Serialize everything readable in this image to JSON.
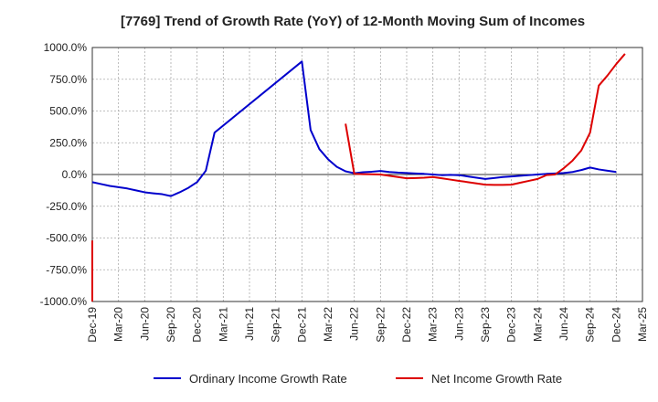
{
  "chart_data": {
    "type": "line",
    "title": "[7769]  Trend of Growth Rate (YoY) of 12-Month Moving Sum of Incomes",
    "xlabel": "",
    "ylabel": "",
    "ylim": [
      -1000,
      1000
    ],
    "yticks": [
      1000,
      750,
      500,
      250,
      0,
      -250,
      -500,
      -750,
      -1000
    ],
    "ytick_labels": [
      "1000.0%",
      "750.0%",
      "500.0%",
      "250.0%",
      "0.0%",
      "-250.0%",
      "-500.0%",
      "-750.0%",
      "-1000.0%"
    ],
    "x_tick_labels": [
      "Dec-19",
      "Mar-20",
      "Jun-20",
      "Sep-20",
      "Dec-20",
      "Mar-21",
      "Jun-21",
      "Sep-21",
      "Dec-21",
      "Mar-22",
      "Jun-22",
      "Sep-22",
      "Dec-22",
      "Mar-23",
      "Jun-23",
      "Sep-23",
      "Dec-23",
      "Mar-24",
      "Jun-24",
      "Sep-24",
      "Dec-24",
      "Mar-25"
    ],
    "x_range": [
      "Dec-19",
      "Mar-25"
    ],
    "grid": true,
    "legend_position": "bottom",
    "colors": {
      "ordinary": "#0000cc",
      "net": "#dd0000",
      "grid": "#aaaaaa",
      "zero_line": "#333333"
    },
    "series": [
      {
        "name": "Ordinary Income Growth Rate",
        "color": "#0000cc",
        "points": [
          [
            "Dec-19",
            -60
          ],
          [
            "Jan-20",
            -75
          ],
          [
            "Feb-20",
            -90
          ],
          [
            "Mar-20",
            -100
          ],
          [
            "Apr-20",
            -110
          ],
          [
            "May-20",
            -125
          ],
          [
            "Jun-20",
            -140
          ],
          [
            "Jul-20",
            -148
          ],
          [
            "Aug-20",
            -155
          ],
          [
            "Sep-20",
            -170
          ],
          [
            "Oct-20",
            -140
          ],
          [
            "Nov-20",
            -105
          ],
          [
            "Dec-20",
            -60
          ],
          [
            "Jan-21",
            30
          ],
          [
            "Feb-21",
            330
          ],
          [
            "Dec-21",
            890
          ],
          [
            "Jan-22",
            350
          ],
          [
            "Feb-22",
            200
          ],
          [
            "Mar-22",
            120
          ],
          [
            "Apr-22",
            60
          ],
          [
            "May-22",
            25
          ],
          [
            "Jun-22",
            10
          ],
          [
            "Jul-22",
            18
          ],
          [
            "Aug-22",
            22
          ],
          [
            "Sep-22",
            28
          ],
          [
            "Oct-22",
            20
          ],
          [
            "Nov-22",
            15
          ],
          [
            "Dec-22",
            12
          ],
          [
            "Jan-23",
            8
          ],
          [
            "Feb-23",
            5
          ],
          [
            "Mar-23",
            0
          ],
          [
            "Apr-23",
            -5
          ],
          [
            "May-23",
            -3
          ],
          [
            "Jun-23",
            -5
          ],
          [
            "Jul-23",
            -15
          ],
          [
            "Aug-23",
            -25
          ],
          [
            "Sep-23",
            -35
          ],
          [
            "Oct-23",
            -28
          ],
          [
            "Nov-23",
            -20
          ],
          [
            "Dec-23",
            -15
          ],
          [
            "Jan-24",
            -10
          ],
          [
            "Feb-24",
            -5
          ],
          [
            "Mar-24",
            0
          ],
          [
            "Apr-24",
            5
          ],
          [
            "May-24",
            8
          ],
          [
            "Jun-24",
            12
          ],
          [
            "Jul-24",
            20
          ],
          [
            "Aug-24",
            35
          ],
          [
            "Sep-24",
            55
          ],
          [
            "Oct-24",
            40
          ],
          [
            "Nov-24",
            30
          ],
          [
            "Dec-24",
            20
          ]
        ]
      },
      {
        "name": "Net Income Growth Rate",
        "color": "#dd0000",
        "segments": [
          [
            [
              "Dec-19",
              -520
            ],
            [
              "Dec-19",
              -1000
            ]
          ],
          [
            [
              "May-22",
              400
            ],
            [
              "Jun-22",
              5
            ],
            [
              "Jul-22",
              3
            ],
            [
              "Aug-22",
              2
            ],
            [
              "Sep-22",
              0
            ],
            [
              "Oct-22",
              -10
            ],
            [
              "Nov-22",
              -20
            ],
            [
              "Dec-22",
              -30
            ],
            [
              "Jan-23",
              -28
            ],
            [
              "Feb-23",
              -25
            ],
            [
              "Mar-23",
              -20
            ],
            [
              "Apr-23",
              -30
            ],
            [
              "May-23",
              -40
            ],
            [
              "Jun-23",
              -50
            ],
            [
              "Jul-23",
              -60
            ],
            [
              "Aug-23",
              -70
            ],
            [
              "Sep-23",
              -80
            ],
            [
              "Oct-23",
              -82
            ],
            [
              "Nov-23",
              -82
            ],
            [
              "Dec-23",
              -80
            ],
            [
              "Jan-24",
              -65
            ],
            [
              "Feb-24",
              -50
            ],
            [
              "Mar-24",
              -35
            ],
            [
              "Apr-24",
              -5
            ],
            [
              "May-24",
              0
            ],
            [
              "Jun-24",
              50
            ],
            [
              "Jul-24",
              110
            ],
            [
              "Aug-24",
              190
            ],
            [
              "Sep-24",
              330
            ],
            [
              "Oct-24",
              700
            ],
            [
              "Nov-24",
              780
            ],
            [
              "Dec-24",
              870
            ],
            [
              "Jan-25",
              950
            ]
          ]
        ]
      }
    ]
  }
}
